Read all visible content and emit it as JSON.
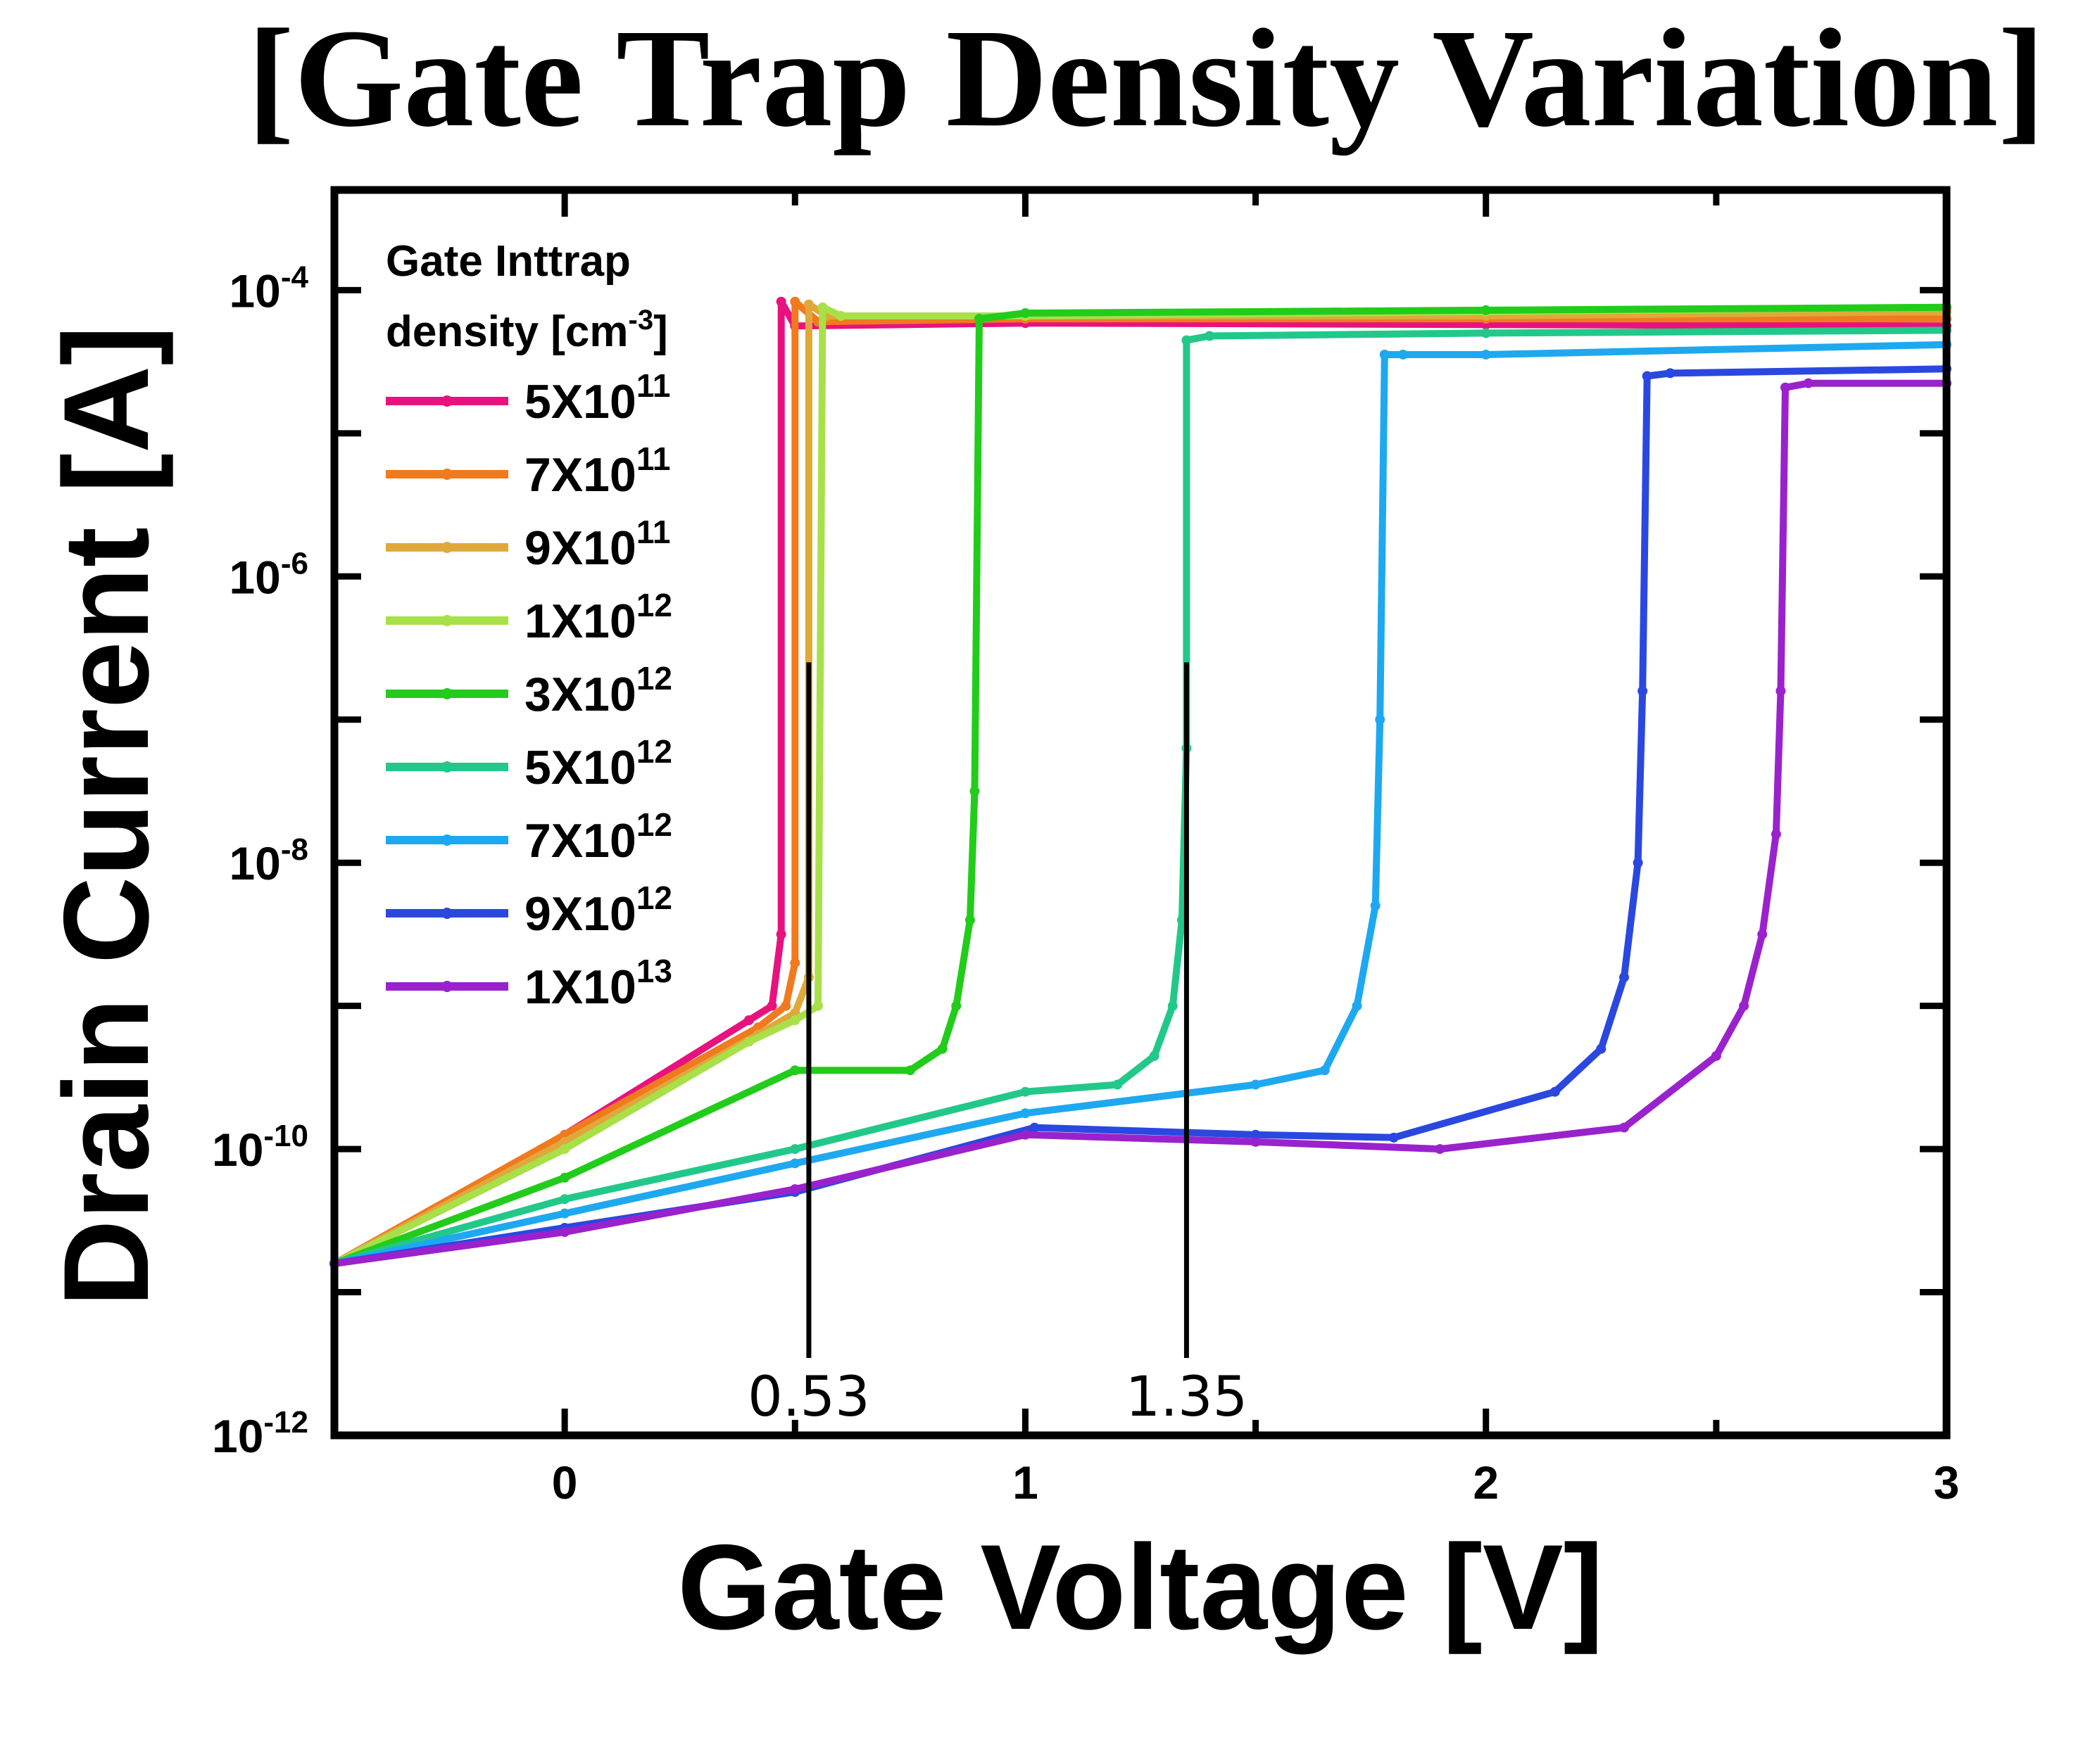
{
  "chart_data": {
    "type": "line",
    "title": "[Gate Trap Density Variation]",
    "xlabel": "Gate Voltage [V]",
    "ylabel": "Drain Current [A]",
    "xlim": [
      -0.5,
      3
    ],
    "ylim_log10": [
      -12,
      -3.3
    ],
    "y_scale": "log",
    "x_ticks": [
      {
        "value": 0,
        "label": "0"
      },
      {
        "value": 1,
        "label": "1"
      },
      {
        "value": 2,
        "label": "2"
      },
      {
        "value": 3,
        "label": "3"
      }
    ],
    "y_ticks": [
      {
        "exp": -4,
        "base": "10",
        "sup": "-4"
      },
      {
        "exp": -6,
        "base": "10",
        "sup": "-6"
      },
      {
        "exp": -8,
        "base": "10",
        "sup": "-8"
      },
      {
        "exp": -10,
        "base": "10",
        "sup": "-10"
      },
      {
        "exp": -12,
        "base": "10",
        "sup": "-12"
      }
    ],
    "y_minor_exps": [
      -5,
      -7,
      -9,
      -11
    ],
    "legend": {
      "placement": "top-left",
      "title_line1": "Gate Inttrap",
      "title_line2_prefix": "density [cm",
      "title_line2_sup": "-3",
      "title_line2_suffix": "]"
    },
    "annotations": [
      {
        "x": 0.53,
        "label": "0.53",
        "y_top_log10": -6.6
      },
      {
        "x": 1.35,
        "label": "1.35",
        "y_top_log10": -6.6
      }
    ],
    "series": [
      {
        "name_base": "5X10",
        "name_sup": "11",
        "color": "#e8127f",
        "points": [
          [
            -0.5,
            -10.8
          ],
          [
            0,
            -9.9
          ],
          [
            0.4,
            -9.1
          ],
          [
            0.45,
            -9.0
          ],
          [
            0.47,
            -8.5
          ],
          [
            0.47,
            -4.08
          ],
          [
            0.5,
            -4.25
          ],
          [
            1,
            -4.23
          ],
          [
            2,
            -4.24
          ],
          [
            3,
            -4.25
          ]
        ]
      },
      {
        "name_base": "7X10",
        "name_sup": "11",
        "color": "#f07a1e",
        "points": [
          [
            -0.5,
            -10.8
          ],
          [
            0,
            -9.9
          ],
          [
            0.42,
            -9.15
          ],
          [
            0.48,
            -9.0
          ],
          [
            0.5,
            -8.7
          ],
          [
            0.5,
            -4.08
          ],
          [
            0.55,
            -4.22
          ],
          [
            1,
            -4.2
          ],
          [
            2,
            -4.2
          ],
          [
            3,
            -4.2
          ]
        ]
      },
      {
        "name_base": "9X10",
        "name_sup": "11",
        "color": "#e0a83a",
        "points": [
          [
            -0.5,
            -10.8
          ],
          [
            0,
            -9.95
          ],
          [
            0.42,
            -9.2
          ],
          [
            0.5,
            -9.05
          ],
          [
            0.53,
            -8.8
          ],
          [
            0.53,
            -4.1
          ],
          [
            0.57,
            -4.18
          ],
          [
            1,
            -4.18
          ],
          [
            2,
            -4.18
          ],
          [
            3,
            -4.15
          ]
        ]
      },
      {
        "name_base": "1X10",
        "name_sup": "12",
        "color": "#a8e04a",
        "points": [
          [
            -0.5,
            -10.8
          ],
          [
            0,
            -10.0
          ],
          [
            0.4,
            -9.25
          ],
          [
            0.5,
            -9.1
          ],
          [
            0.55,
            -9.0
          ],
          [
            0.56,
            -4.12
          ],
          [
            0.6,
            -4.18
          ],
          [
            1,
            -4.18
          ],
          [
            2,
            -4.15
          ],
          [
            3,
            -4.12
          ]
        ]
      },
      {
        "name_base": "3X10",
        "name_sup": "12",
        "color": "#22cc1a",
        "points": [
          [
            -0.5,
            -10.8
          ],
          [
            0,
            -10.2
          ],
          [
            0.5,
            -9.45
          ],
          [
            0.75,
            -9.45
          ],
          [
            0.82,
            -9.3
          ],
          [
            0.85,
            -9.0
          ],
          [
            0.88,
            -8.4
          ],
          [
            0.89,
            -7.5
          ],
          [
            0.9,
            -4.2
          ],
          [
            1,
            -4.16
          ],
          [
            2,
            -4.14
          ],
          [
            3,
            -4.12
          ]
        ]
      },
      {
        "name_base": "5X10",
        "name_sup": "12",
        "color": "#22c88a",
        "points": [
          [
            -0.5,
            -10.8
          ],
          [
            0,
            -10.35
          ],
          [
            0.5,
            -10.0
          ],
          [
            1,
            -9.6
          ],
          [
            1.2,
            -9.55
          ],
          [
            1.28,
            -9.35
          ],
          [
            1.32,
            -9.0
          ],
          [
            1.34,
            -8.4
          ],
          [
            1.35,
            -7.2
          ],
          [
            1.35,
            -4.35
          ],
          [
            1.4,
            -4.32
          ],
          [
            2,
            -4.3
          ],
          [
            3,
            -4.28
          ]
        ]
      },
      {
        "name_base": "7X10",
        "name_sup": "12",
        "color": "#1ea8f0",
        "points": [
          [
            -0.5,
            -10.8
          ],
          [
            0,
            -10.45
          ],
          [
            0.5,
            -10.1
          ],
          [
            1,
            -9.75
          ],
          [
            1.5,
            -9.55
          ],
          [
            1.65,
            -9.45
          ],
          [
            1.72,
            -9.0
          ],
          [
            1.76,
            -8.3
          ],
          [
            1.77,
            -7.0
          ],
          [
            1.78,
            -4.45
          ],
          [
            1.82,
            -4.45
          ],
          [
            2,
            -4.45
          ],
          [
            3,
            -4.38
          ]
        ]
      },
      {
        "name_base": "9X10",
        "name_sup": "12",
        "color": "#2a48e0",
        "points": [
          [
            -0.5,
            -10.8
          ],
          [
            0,
            -10.55
          ],
          [
            0.5,
            -10.3
          ],
          [
            1.02,
            -9.85
          ],
          [
            1.5,
            -9.9
          ],
          [
            1.8,
            -9.92
          ],
          [
            2.15,
            -9.6
          ],
          [
            2.25,
            -9.3
          ],
          [
            2.3,
            -8.8
          ],
          [
            2.33,
            -8.0
          ],
          [
            2.34,
            -6.8
          ],
          [
            2.35,
            -4.6
          ],
          [
            2.4,
            -4.58
          ],
          [
            3,
            -4.55
          ]
        ]
      },
      {
        "name_base": "1X10",
        "name_sup": "13",
        "color": "#9a22cc",
        "points": [
          [
            -0.5,
            -10.8
          ],
          [
            0,
            -10.58
          ],
          [
            0.5,
            -10.28
          ],
          [
            1,
            -9.9
          ],
          [
            1.5,
            -9.95
          ],
          [
            1.9,
            -10.0
          ],
          [
            2.3,
            -9.85
          ],
          [
            2.5,
            -9.35
          ],
          [
            2.56,
            -9.0
          ],
          [
            2.6,
            -8.5
          ],
          [
            2.63,
            -7.8
          ],
          [
            2.64,
            -6.8
          ],
          [
            2.65,
            -4.68
          ],
          [
            2.7,
            -4.65
          ],
          [
            3,
            -4.65
          ]
        ]
      }
    ]
  }
}
